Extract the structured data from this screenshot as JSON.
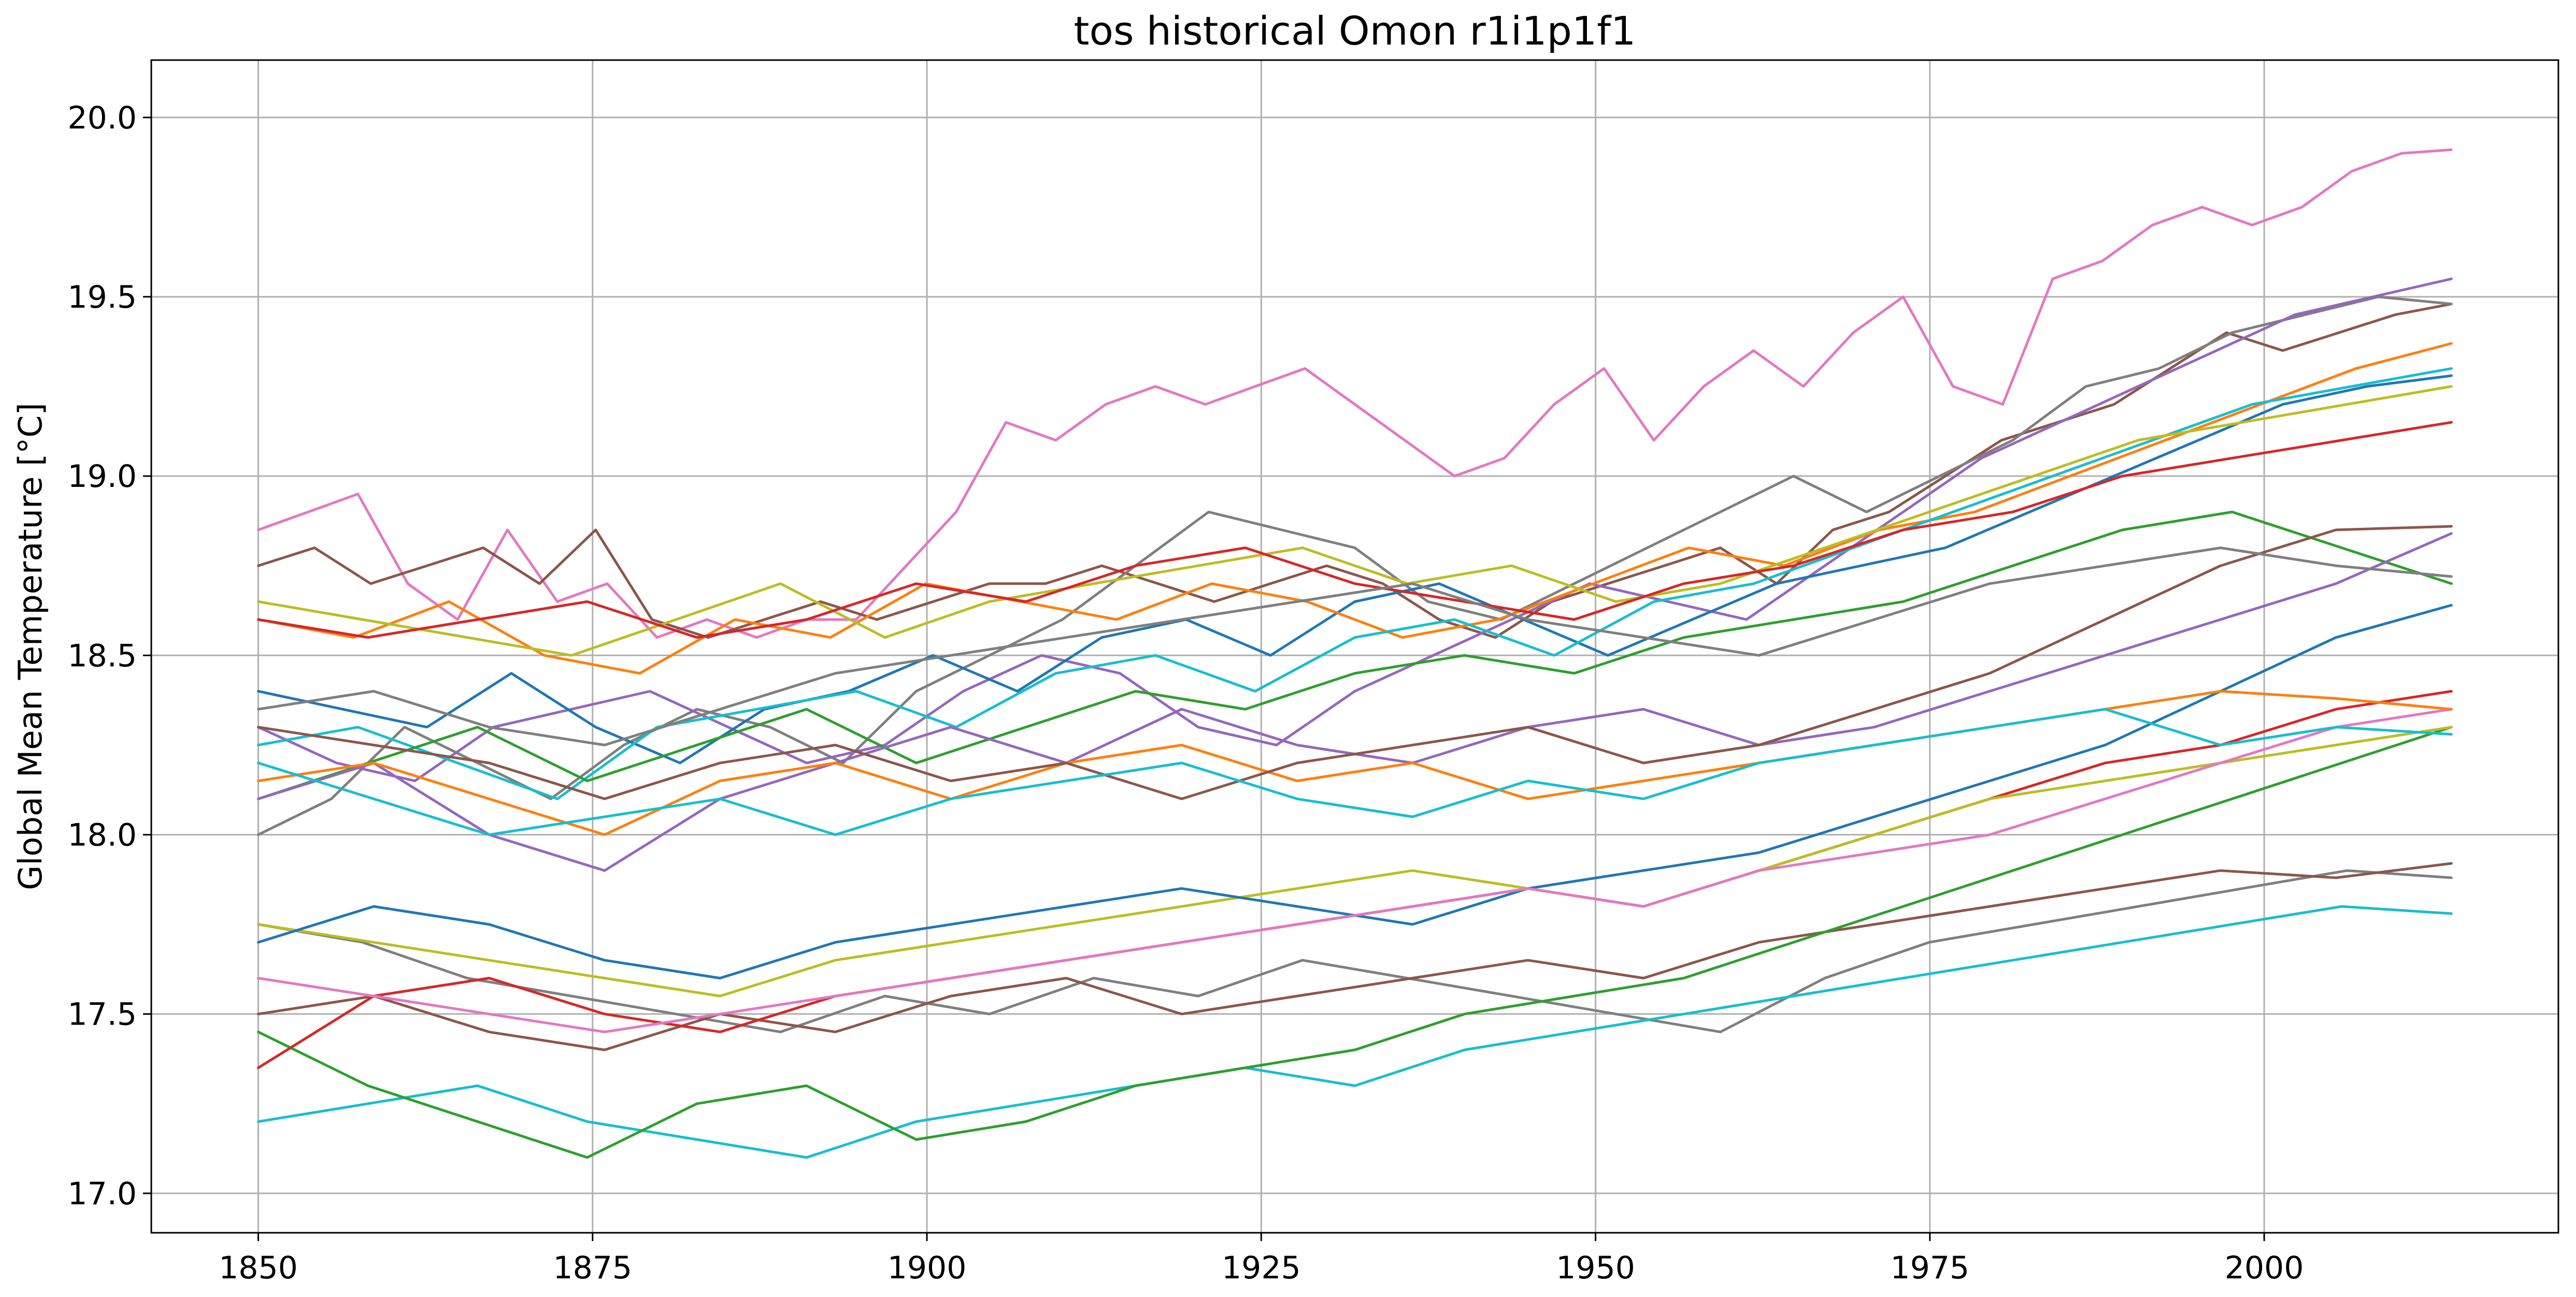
{
  "chart_data": {
    "type": "line",
    "title": "tos historical Omon r1i1p1f1",
    "xlabel": "",
    "ylabel": "Global Mean Temperature [$^\\circ$C]",
    "ylabel_display": "Global Mean Temperature [°C]",
    "xlim": [
      1842,
      2022
    ],
    "ylim": [
      16.89,
      20.16
    ],
    "xticks": [
      1850,
      1875,
      1900,
      1925,
      1950,
      1975,
      2000
    ],
    "yticks": [
      17.0,
      17.5,
      18.0,
      18.5,
      19.0,
      19.5,
      20.0
    ],
    "x_start": 1850,
    "x_end": 2014,
    "grid": true,
    "legend": "none",
    "series": [
      {
        "color": "#e377c2",
        "values": [
          18.85,
          18.9,
          18.95,
          18.7,
          18.6,
          18.85,
          18.65,
          18.7,
          18.55,
          18.6,
          18.55,
          18.6,
          18.6,
          18.75,
          18.9,
          19.15,
          19.1,
          19.2,
          19.25,
          19.2,
          19.25,
          19.3,
          19.2,
          19.1,
          19.0,
          19.05,
          19.2,
          19.3,
          19.1,
          19.25,
          19.35,
          19.25,
          19.4,
          19.5,
          19.25,
          19.2,
          19.55,
          19.6,
          19.7,
          19.75,
          19.7,
          19.75,
          19.85,
          19.9,
          19.91
        ]
      },
      {
        "color": "#8c564b",
        "values": [
          18.75,
          18.8,
          18.7,
          18.75,
          18.8,
          18.7,
          18.85,
          18.6,
          18.55,
          18.6,
          18.65,
          18.6,
          18.65,
          18.7,
          18.7,
          18.75,
          18.7,
          18.65,
          18.7,
          18.75,
          18.7,
          18.6,
          18.55,
          18.65,
          18.7,
          18.75,
          18.8,
          18.7,
          18.85,
          18.9,
          19.0,
          19.1,
          19.15,
          19.2,
          19.3,
          19.4,
          19.35,
          19.4,
          19.45,
          19.48
        ]
      },
      {
        "color": "#7f7f7f",
        "values": [
          18.0,
          18.1,
          18.3,
          18.2,
          18.1,
          18.25,
          18.35,
          18.3,
          18.2,
          18.4,
          18.5,
          18.6,
          18.75,
          18.9,
          18.85,
          18.8,
          18.65,
          18.6,
          18.7,
          18.8,
          18.9,
          19.0,
          18.9,
          19.0,
          19.1,
          19.25,
          19.3,
          19.4,
          19.45,
          19.5,
          19.48
        ]
      },
      {
        "color": "#9467bd",
        "values": [
          18.3,
          18.2,
          18.15,
          18.3,
          18.35,
          18.4,
          18.3,
          18.2,
          18.25,
          18.4,
          18.5,
          18.45,
          18.3,
          18.25,
          18.4,
          18.5,
          18.6,
          18.7,
          18.65,
          18.6,
          18.75,
          18.9,
          19.05,
          19.15,
          19.25,
          19.35,
          19.45,
          19.5,
          19.55
        ]
      },
      {
        "color": "#1f77b4",
        "values": [
          18.4,
          18.35,
          18.3,
          18.45,
          18.3,
          18.2,
          18.35,
          18.4,
          18.5,
          18.4,
          18.55,
          18.6,
          18.5,
          18.65,
          18.7,
          18.6,
          18.5,
          18.6,
          18.7,
          18.75,
          18.8,
          18.9,
          19.0,
          19.1,
          19.2,
          19.25,
          19.28
        ]
      },
      {
        "color": "#ff7f0e",
        "values": [
          18.6,
          18.55,
          18.65,
          18.5,
          18.45,
          18.6,
          18.55,
          18.7,
          18.65,
          18.6,
          18.7,
          18.65,
          18.55,
          18.6,
          18.7,
          18.8,
          18.75,
          18.85,
          18.9,
          19.0,
          19.1,
          19.2,
          19.3,
          19.37
        ]
      },
      {
        "color": "#17becf",
        "values": [
          18.25,
          18.3,
          18.2,
          18.1,
          18.3,
          18.35,
          18.4,
          18.3,
          18.45,
          18.5,
          18.4,
          18.55,
          18.6,
          18.5,
          18.65,
          18.7,
          18.8,
          18.9,
          19.0,
          19.1,
          19.2,
          19.25,
          19.3
        ]
      },
      {
        "color": "#bcbd22",
        "values": [
          18.65,
          18.6,
          18.55,
          18.5,
          18.6,
          18.7,
          18.55,
          18.65,
          18.7,
          18.75,
          18.8,
          18.7,
          18.75,
          18.65,
          18.7,
          18.8,
          18.9,
          19.0,
          19.1,
          19.15,
          19.2,
          19.25
        ]
      },
      {
        "color": "#d62728",
        "values": [
          18.6,
          18.55,
          18.6,
          18.65,
          18.55,
          18.6,
          18.7,
          18.65,
          18.75,
          18.8,
          18.7,
          18.65,
          18.6,
          18.7,
          18.75,
          18.85,
          18.9,
          19.0,
          19.05,
          19.1,
          19.15
        ]
      },
      {
        "color": "#2ca02c",
        "values": [
          18.1,
          18.2,
          18.3,
          18.15,
          18.25,
          18.35,
          18.2,
          18.3,
          18.4,
          18.35,
          18.45,
          18.5,
          18.45,
          18.55,
          18.6,
          18.65,
          18.75,
          18.85,
          18.9,
          18.8,
          18.7
        ]
      },
      {
        "color": "#7f7f7f",
        "values": [
          17.75,
          17.7,
          17.6,
          17.55,
          17.5,
          17.45,
          17.55,
          17.5,
          17.6,
          17.55,
          17.65,
          17.6,
          17.55,
          17.5,
          17.45,
          17.6,
          17.7,
          17.75,
          17.8,
          17.85,
          17.9,
          17.88
        ]
      },
      {
        "color": "#8c564b",
        "values": [
          17.5,
          17.55,
          17.45,
          17.4,
          17.5,
          17.45,
          17.55,
          17.6,
          17.5,
          17.55,
          17.6,
          17.65,
          17.6,
          17.7,
          17.75,
          17.8,
          17.85,
          17.9,
          17.88,
          17.92
        ]
      },
      {
        "color": "#17becf",
        "values": [
          17.2,
          17.25,
          17.3,
          17.2,
          17.15,
          17.1,
          17.2,
          17.25,
          17.3,
          17.35,
          17.3,
          17.4,
          17.45,
          17.5,
          17.55,
          17.6,
          17.65,
          17.7,
          17.75,
          17.8,
          17.78
        ]
      },
      {
        "color": "#2ca02c",
        "values": [
          17.45,
          17.3,
          17.2,
          17.1,
          17.25,
          17.3,
          17.15,
          17.2,
          17.3,
          17.35,
          17.4,
          17.5,
          17.55,
          17.6,
          17.7,
          17.8,
          17.9,
          18.0,
          18.1,
          18.2,
          18.3
        ]
      },
      {
        "color": "#d62728",
        "values": [
          17.35,
          17.55,
          17.6,
          17.5,
          17.45,
          17.55,
          17.6,
          17.65,
          17.7,
          17.75,
          17.8,
          17.85,
          17.8,
          17.9,
          18.0,
          18.1,
          18.2,
          18.25,
          18.35,
          18.4
        ]
      },
      {
        "color": "#bcbd22",
        "values": [
          17.75,
          17.7,
          17.65,
          17.6,
          17.55,
          17.65,
          17.7,
          17.75,
          17.8,
          17.85,
          17.9,
          17.85,
          17.8,
          17.9,
          18.0,
          18.1,
          18.15,
          18.2,
          18.25,
          18.3
        ]
      },
      {
        "color": "#1f77b4",
        "values": [
          17.7,
          17.8,
          17.75,
          17.65,
          17.6,
          17.7,
          17.75,
          17.8,
          17.85,
          17.8,
          17.75,
          17.85,
          17.9,
          17.95,
          18.05,
          18.15,
          18.25,
          18.4,
          18.55,
          18.64
        ]
      },
      {
        "color": "#e377c2",
        "values": [
          17.6,
          17.55,
          17.5,
          17.45,
          17.5,
          17.55,
          17.6,
          17.65,
          17.7,
          17.75,
          17.8,
          17.85,
          17.8,
          17.9,
          17.95,
          18.0,
          18.1,
          18.2,
          18.3,
          18.35
        ]
      },
      {
        "color": "#9467bd",
        "values": [
          18.1,
          18.2,
          18.0,
          17.9,
          18.1,
          18.2,
          18.3,
          18.2,
          18.35,
          18.25,
          18.2,
          18.3,
          18.35,
          18.25,
          18.3,
          18.4,
          18.5,
          18.6,
          18.7,
          18.84
        ]
      },
      {
        "color": "#ff7f0e",
        "values": [
          18.15,
          18.2,
          18.1,
          18.0,
          18.15,
          18.2,
          18.1,
          18.2,
          18.25,
          18.15,
          18.2,
          18.1,
          18.15,
          18.2,
          18.25,
          18.3,
          18.35,
          18.4,
          18.38,
          18.35
        ]
      },
      {
        "color": "#8c564b",
        "values": [
          18.3,
          18.25,
          18.2,
          18.1,
          18.2,
          18.25,
          18.15,
          18.2,
          18.1,
          18.2,
          18.25,
          18.3,
          18.2,
          18.25,
          18.35,
          18.45,
          18.6,
          18.75,
          18.85,
          18.86
        ]
      },
      {
        "color": "#7f7f7f",
        "values": [
          18.35,
          18.4,
          18.3,
          18.25,
          18.35,
          18.45,
          18.5,
          18.55,
          18.6,
          18.65,
          18.7,
          18.6,
          18.55,
          18.5,
          18.6,
          18.7,
          18.75,
          18.8,
          18.75,
          18.72
        ]
      },
      {
        "color": "#17becf",
        "values": [
          18.2,
          18.1,
          18.0,
          18.05,
          18.1,
          18.0,
          18.1,
          18.15,
          18.2,
          18.1,
          18.05,
          18.15,
          18.1,
          18.2,
          18.25,
          18.3,
          18.35,
          18.25,
          18.3,
          18.28
        ]
      }
    ]
  }
}
